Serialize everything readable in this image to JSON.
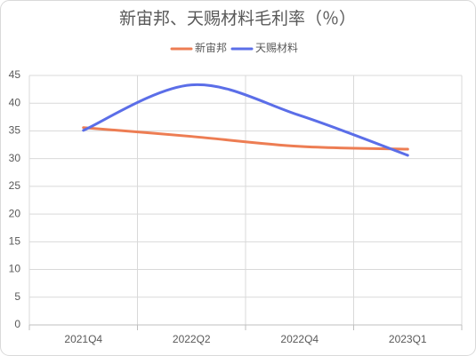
{
  "chart_data": {
    "type": "line",
    "title": "新宙邦、天赐材料毛利率（％）",
    "categories": [
      "2021Q4",
      "2022Q2",
      "2022Q4",
      "2023Q1"
    ],
    "series": [
      {
        "name": "新宙邦",
        "color": "#ed7d53",
        "values": [
          35.6,
          34.0,
          32.2,
          31.7
        ]
      },
      {
        "name": "天赐材料",
        "color": "#5b6ee8",
        "values": [
          35.1,
          43.3,
          37.8,
          30.6
        ]
      }
    ],
    "ylim": [
      0,
      45
    ],
    "yticks": [
      0,
      5,
      10,
      15,
      20,
      25,
      30,
      35,
      40,
      45
    ],
    "grid": true,
    "legend": "top",
    "smooth": true
  }
}
